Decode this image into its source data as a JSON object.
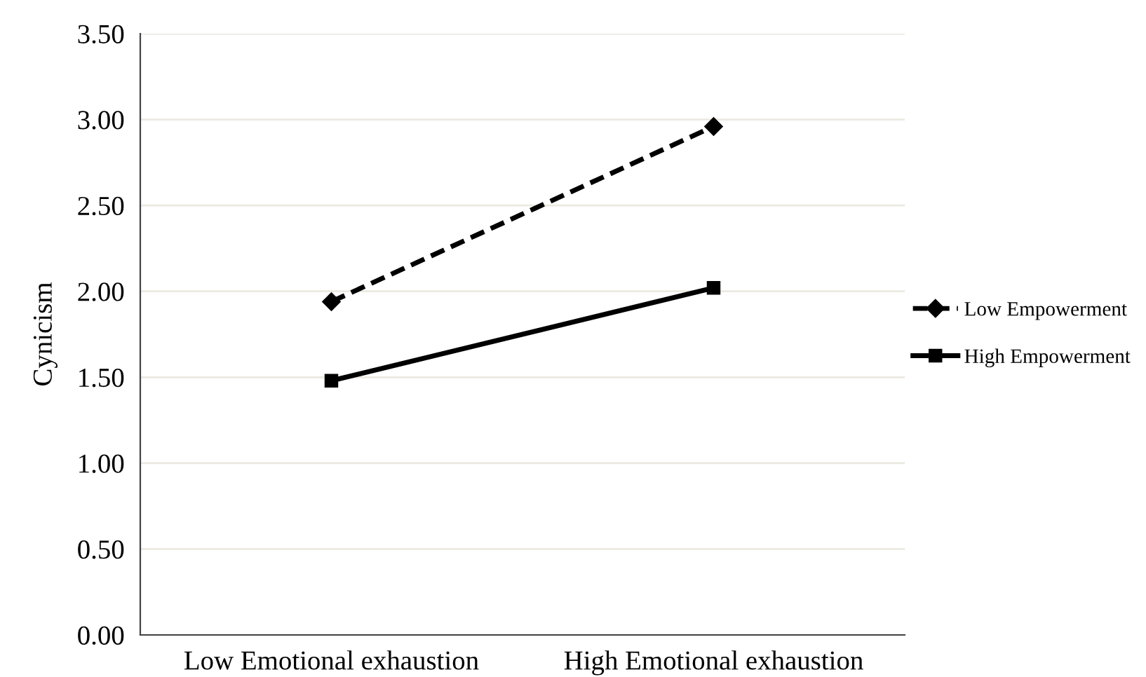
{
  "chart_data": {
    "type": "line",
    "ylabel": "Cynicism",
    "categories": [
      "Low Emotional exhaustion",
      "High Emotional exhaustion"
    ],
    "series": [
      {
        "name": "Low Empowerment",
        "color": "#000000",
        "values": [
          1.94,
          2.96
        ],
        "marker": "diamond",
        "line_style": "dashed"
      },
      {
        "name": "High Empowerment",
        "color": "#000000",
        "values": [
          1.48,
          2.02
        ],
        "marker": "square",
        "line_style": "solid"
      }
    ],
    "ylim": [
      0,
      3.5
    ],
    "yticks": [
      {
        "value": 0,
        "label": "0.00"
      },
      {
        "value": 0.5,
        "label": "0.50"
      },
      {
        "value": 1,
        "label": "1.00"
      },
      {
        "value": 1.5,
        "label": "1.50"
      },
      {
        "value": 2,
        "label": "2.00"
      },
      {
        "value": 2.5,
        "label": "2.50"
      },
      {
        "value": 3,
        "label": "3.00"
      },
      {
        "value": 3.5,
        "label": "3.50"
      }
    ],
    "grid": "y",
    "legend": "right"
  }
}
